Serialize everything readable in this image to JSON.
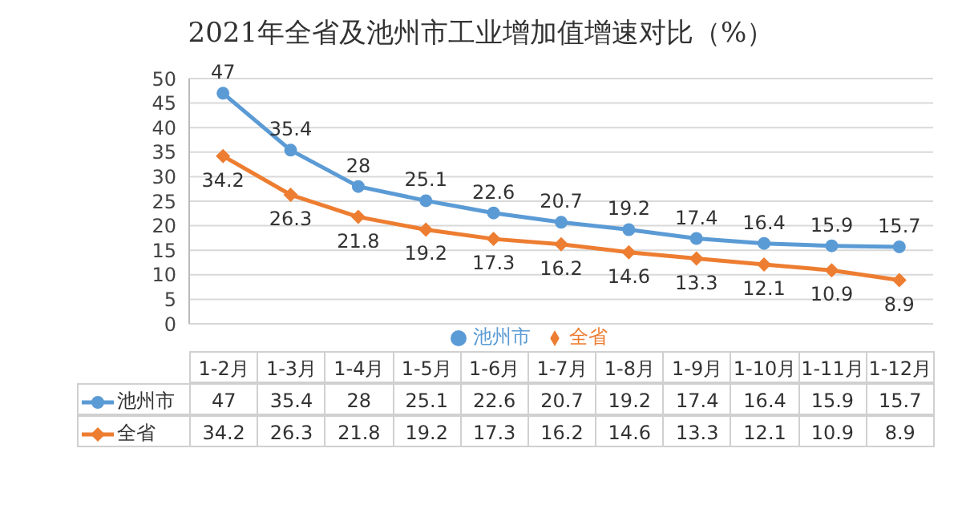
{
  "chart_data": {
    "type": "line",
    "title": "2021年全省及池州市工业增加值增速对比（%）",
    "categories": [
      "1-2月",
      "1-3月",
      "1-4月",
      "1-5月",
      "1-6月",
      "1-7月",
      "1-8月",
      "1-9月",
      "1-10月",
      "1-11月",
      "1-12月"
    ],
    "series": [
      {
        "name": "池州市",
        "color": "#5b9bd5",
        "marker": "circle",
        "values": [
          47,
          35.4,
          28,
          25.1,
          22.6,
          20.7,
          19.2,
          17.4,
          16.4,
          15.9,
          15.7
        ],
        "value_labels": [
          "47",
          "35.4",
          "28",
          "25.1",
          "22.6",
          "20.7",
          "19.2",
          "17.4",
          "16.4",
          "15.9",
          "15.7"
        ]
      },
      {
        "name": "全省",
        "color": "#ed7d31",
        "marker": "diamond",
        "values": [
          34.2,
          26.3,
          21.8,
          19.2,
          17.3,
          16.2,
          14.6,
          13.3,
          12.1,
          10.9,
          8.9
        ],
        "value_labels": [
          "34.2",
          "26.3",
          "21.8",
          "19.2",
          "17.3",
          "16.2",
          "14.6",
          "13.3",
          "12.1",
          "10.9",
          "8.9"
        ]
      }
    ],
    "ylim": [
      0,
      50
    ],
    "yticks": [
      0,
      5,
      10,
      15,
      20,
      25,
      30,
      35,
      40,
      45,
      50
    ],
    "grid": "y",
    "legend": "bottom"
  }
}
